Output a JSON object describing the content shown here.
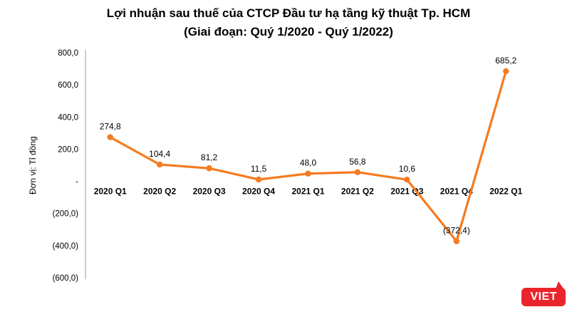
{
  "title": {
    "line1": "Lợi nhuận sau thuế của CTCP Đầu tư hạ tầng kỹ thuật Tp. HCM",
    "line2": "(Giai đoạn: Quý 1/2020 - Quý 1/2022)"
  },
  "chart_data": {
    "type": "line",
    "categories": [
      "2020 Q1",
      "2020 Q2",
      "2020 Q3",
      "2020 Q4",
      "2021 Q1",
      "2021 Q2",
      "2021 Q3",
      "2021 Q4",
      "2022 Q1"
    ],
    "values": [
      274.8,
      104.4,
      81.2,
      11.5,
      48.0,
      56.8,
      10.6,
      -372.4,
      685.2
    ],
    "data_labels": [
      "274,8",
      "104,4",
      "81,2",
      "11,5",
      "48,0",
      "56,8",
      "10,6",
      "(372,4)",
      "685,2"
    ],
    "title": "Lợi nhuận sau thuế của CTCP Đầu tư hạ tầng kỹ thuật Tp. HCM (Giai đoạn: Quý 1/2020 - Quý 1/2022)",
    "xlabel": "",
    "ylabel": "Đơn vị: Tỉ đồng",
    "ylim": [
      -600,
      800
    ],
    "yticks": [
      800,
      600,
      400,
      200,
      0,
      -200,
      -400,
      -600
    ],
    "ytick_labels": [
      "800,0",
      "600,0",
      "400,0",
      "200,0",
      "-",
      "(200,0)",
      "(400,0)",
      "(600,0)"
    ],
    "line_color": "#f47b20",
    "marker": "circle",
    "grid": false,
    "legend_position": "none"
  },
  "logo": {
    "text": "VIET",
    "color": "#e8252b"
  }
}
